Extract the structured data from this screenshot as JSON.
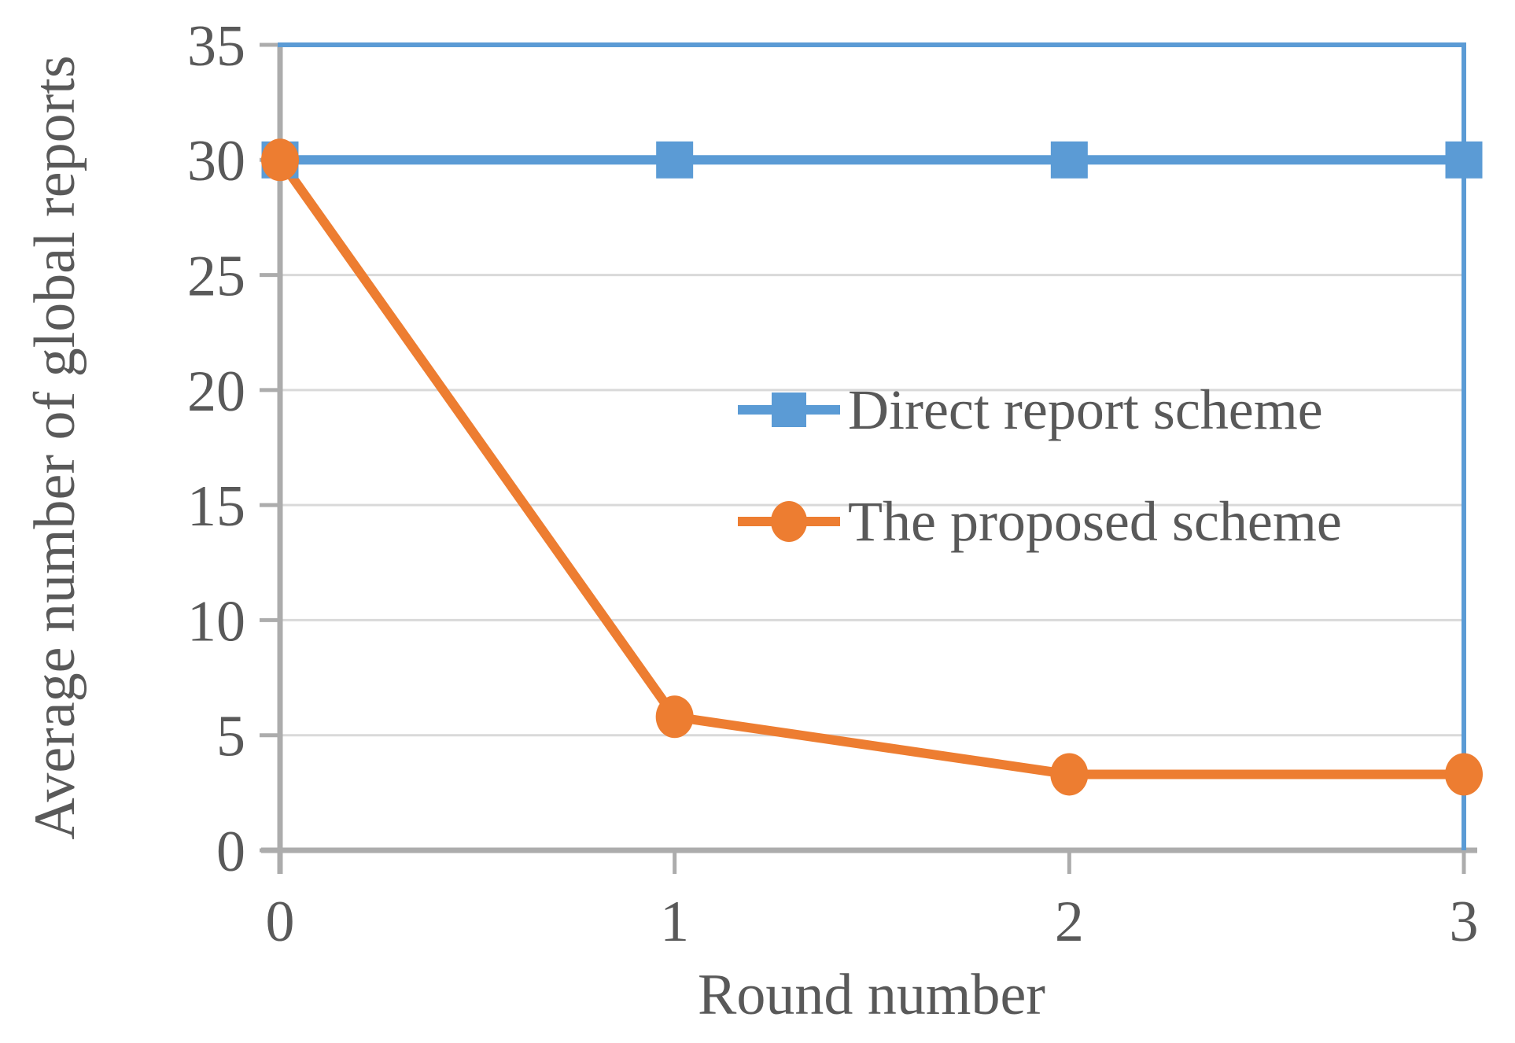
{
  "chart_data": {
    "type": "line",
    "title": "",
    "xlabel": "Round number",
    "ylabel": "Average number of global reports",
    "x": [
      0,
      1,
      2,
      3
    ],
    "x_tick_labels": [
      "0",
      "1",
      "2",
      "3"
    ],
    "y_ticks": [
      0,
      5,
      10,
      15,
      20,
      25,
      30,
      35
    ],
    "ylim": [
      0,
      35
    ],
    "xlim": [
      0,
      3
    ],
    "grid": "horizontal",
    "legend_position": "inside-center-right",
    "series": [
      {
        "name": "Direct report scheme",
        "color": "#5B9BD5",
        "marker": "square",
        "values": [
          30,
          30,
          30,
          30
        ]
      },
      {
        "name": "The proposed scheme",
        "color": "#ED7D31",
        "marker": "circle",
        "values": [
          30,
          5.8,
          3.3,
          3.3
        ]
      }
    ]
  },
  "styles": {
    "text_color": "#595959",
    "gridline_color": "#D9D9D9",
    "axis_color": "#ACACAC",
    "plot_border_color": "#5B9BD5"
  }
}
